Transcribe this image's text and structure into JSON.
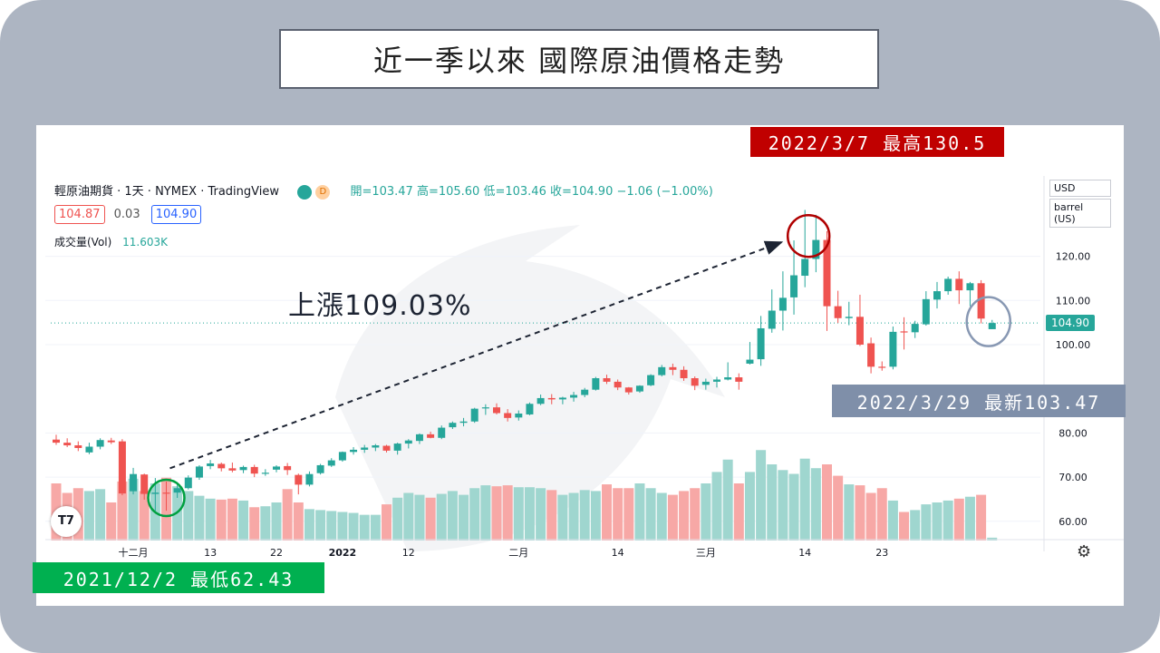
{
  "title": "近一季以來 國際原油價格走勢",
  "banners": {
    "high": "2022/3/7 最高130.5",
    "latest": "2022/3/29 最新103.47",
    "low": "2021/12/2 最低62.43"
  },
  "chart_header": {
    "symbol": "輕原油期貨 · 1天 · NYMEX · TradingView",
    "status_dot": "",
    "delay_badge": "D",
    "ohlc": "開=103.47 高=105.60 低=103.46 收=104.90 −1.06 (−1.00%)",
    "bid": "104.87",
    "spread": "0.03",
    "ask": "104.90",
    "volume_label": "成交量(Vol)",
    "volume_value": "11.603K"
  },
  "unit": {
    "currency": "USD",
    "measure": "barrel (US)"
  },
  "annotation": "上漲109.03%",
  "last_price_tag": "104.90",
  "logo_text": "T7",
  "colors": {
    "up": "#26a69a",
    "down": "#ef5350",
    "up_vol": "#9fd6cf",
    "down_vol": "#f7a8a6"
  },
  "chart_data": {
    "type": "candlestick",
    "ylim": [
      56,
      135
    ],
    "y_ticks": [
      60,
      70,
      80,
      100,
      110,
      120
    ],
    "x_tick_labels": [
      {
        "label": "十二月",
        "index": 7
      },
      {
        "label": "13",
        "index": 14
      },
      {
        "label": "22",
        "index": 20
      },
      {
        "label": "2022",
        "index": 26
      },
      {
        "label": "12",
        "index": 32
      },
      {
        "label": "二月",
        "index": 42
      },
      {
        "label": "14",
        "index": 51
      },
      {
        "label": "三月",
        "index": 59
      },
      {
        "label": "14",
        "index": 68
      },
      {
        "label": "23",
        "index": 75
      }
    ],
    "candles": [
      [
        78.5,
        79.6,
        77.3,
        77.8,
        60
      ],
      [
        77.8,
        78.8,
        76.8,
        77.2,
        50
      ],
      [
        77.2,
        78.1,
        75.9,
        76.6,
        55
      ],
      [
        75.6,
        77.8,
        75.2,
        76.9,
        52
      ],
      [
        76.9,
        78.8,
        76.3,
        78.4,
        54
      ],
      [
        78.3,
        78.9,
        77.5,
        77.9,
        40
      ],
      [
        78.1,
        78.6,
        65.9,
        66.3,
        62
      ],
      [
        66.8,
        72.1,
        66.1,
        70.7,
        65
      ],
      [
        70.6,
        70.8,
        64.9,
        66.2,
        52
      ],
      [
        66.2,
        69.8,
        62.4,
        66.5,
        60
      ],
      [
        66.5,
        69.0,
        62.4,
        66.3,
        66
      ],
      [
        66.5,
        68.7,
        65.3,
        67.5,
        57
      ],
      [
        67.5,
        70.4,
        67.2,
        69.9,
        52
      ],
      [
        69.9,
        72.7,
        69.4,
        72.4,
        47
      ],
      [
        72.5,
        73.9,
        71.8,
        73.1,
        44
      ],
      [
        73.0,
        73.3,
        71.3,
        72.0,
        43
      ],
      [
        72.0,
        73.3,
        71.1,
        71.5,
        44
      ],
      [
        71.6,
        72.6,
        70.9,
        72.3,
        42
      ],
      [
        72.3,
        72.8,
        70.0,
        70.8,
        35
      ],
      [
        70.9,
        71.8,
        70.3,
        71.0,
        36
      ],
      [
        71.7,
        72.7,
        71.1,
        72.4,
        40
      ],
      [
        72.5,
        73.2,
        70.5,
        71.6,
        54
      ],
      [
        70.5,
        70.8,
        66.1,
        68.3,
        40
      ],
      [
        68.3,
        71.3,
        67.9,
        70.7,
        33
      ],
      [
        70.9,
        73.0,
        70.6,
        72.7,
        32
      ],
      [
        72.6,
        74.3,
        72.3,
        73.8,
        31
      ],
      [
        73.8,
        75.8,
        73.5,
        75.7,
        30
      ],
      [
        75.7,
        76.8,
        75.1,
        76.2,
        29
      ],
      [
        76.2,
        77.3,
        75.5,
        76.7,
        27
      ],
      [
        76.7,
        77.5,
        75.9,
        77.2,
        27
      ],
      [
        77.1,
        77.3,
        75.6,
        76.0,
        38
      ],
      [
        76.0,
        77.8,
        75.1,
        77.6,
        45
      ],
      [
        77.6,
        78.6,
        76.5,
        78.3,
        50
      ],
      [
        78.2,
        79.9,
        77.5,
        79.7,
        48
      ],
      [
        79.7,
        80.3,
        78.8,
        78.9,
        45
      ],
      [
        78.9,
        81.7,
        78.6,
        81.2,
        49
      ],
      [
        81.3,
        82.6,
        80.9,
        82.3,
        52
      ],
      [
        82.3,
        83.4,
        81.5,
        82.6,
        48
      ],
      [
        82.6,
        85.7,
        82.3,
        85.5,
        55
      ],
      [
        85.6,
        86.5,
        84.1,
        85.8,
        58
      ],
      [
        85.8,
        86.7,
        84.2,
        84.5,
        57
      ],
      [
        84.5,
        85.4,
        82.6,
        83.4,
        58
      ],
      [
        83.5,
        85.1,
        82.8,
        84.4,
        56
      ],
      [
        84.2,
        86.9,
        84.0,
        86.6,
        56
      ],
      [
        86.6,
        88.7,
        86.3,
        87.9,
        55
      ],
      [
        87.9,
        88.8,
        86.5,
        87.6,
        53
      ],
      [
        87.6,
        88.2,
        86.5,
        88.0,
        48
      ],
      [
        88.0,
        89.3,
        87.1,
        88.6,
        50
      ],
      [
        88.6,
        90.2,
        88.1,
        89.8,
        53
      ],
      [
        89.8,
        92.7,
        89.6,
        92.4,
        52
      ],
      [
        92.4,
        93.2,
        91.1,
        91.6,
        59
      ],
      [
        91.6,
        92.1,
        89.7,
        90.3,
        55
      ],
      [
        90.3,
        90.4,
        88.7,
        89.2,
        55
      ],
      [
        89.4,
        90.8,
        89.1,
        90.7,
        60
      ],
      [
        90.8,
        93.3,
        90.6,
        93.1,
        55
      ],
      [
        93.1,
        95.4,
        92.8,
        94.9,
        50
      ],
      [
        94.9,
        95.7,
        93.1,
        94.3,
        48
      ],
      [
        94.3,
        95.1,
        91.8,
        92.4,
        52
      ],
      [
        92.4,
        92.8,
        89.7,
        90.7,
        55
      ],
      [
        90.9,
        92.3,
        89.8,
        91.6,
        60
      ],
      [
        91.6,
        92.7,
        90.3,
        92.1,
        72
      ],
      [
        92.1,
        96.0,
        91.9,
        92.6,
        85
      ],
      [
        92.6,
        93.5,
        89.8,
        91.6,
        60
      ],
      [
        95.7,
        100.6,
        95.5,
        96.6,
        72
      ],
      [
        96.7,
        106.5,
        95.2,
        103.7,
        95
      ],
      [
        103.6,
        112.5,
        102.7,
        107.7,
        80
      ],
      [
        107.7,
        116.6,
        103.2,
        110.6,
        74
      ],
      [
        110.7,
        123.6,
        106.8,
        115.7,
        70
      ],
      [
        115.6,
        130.5,
        113.0,
        119.4,
        86
      ],
      [
        119.4,
        129.4,
        116.4,
        123.7,
        76
      ],
      [
        123.7,
        125.7,
        103.1,
        108.7,
        80
      ],
      [
        108.7,
        112.2,
        104.9,
        106.0,
        68
      ],
      [
        106.0,
        109.7,
        104.4,
        106.3,
        59
      ],
      [
        106.3,
        111.3,
        99.7,
        100.0,
        58
      ],
      [
        100.3,
        101.6,
        93.5,
        95.0,
        50
      ],
      [
        95.0,
        96.2,
        94.1,
        94.8,
        55
      ],
      [
        95.0,
        104.1,
        94.4,
        102.9,
        42
      ],
      [
        103.0,
        106.2,
        98.9,
        102.8,
        30
      ],
      [
        102.8,
        105.4,
        101.5,
        104.7,
        32
      ],
      [
        104.6,
        112.1,
        104.3,
        110.3,
        38
      ],
      [
        110.2,
        114.2,
        108.2,
        112.1,
        40
      ],
      [
        112.1,
        115.4,
        111.3,
        114.9,
        42
      ],
      [
        114.9,
        116.6,
        109.2,
        112.3,
        44
      ],
      [
        112.3,
        114.2,
        108.7,
        113.9,
        46
      ],
      [
        113.9,
        114.6,
        104.8,
        105.9,
        48
      ],
      [
        103.5,
        105.6,
        103.5,
        104.9,
        3
      ]
    ]
  }
}
